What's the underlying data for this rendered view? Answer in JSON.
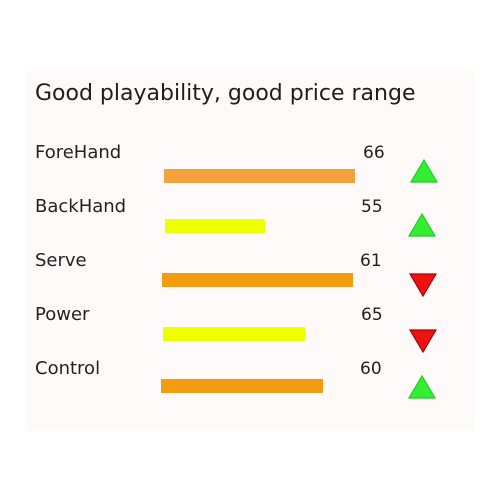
{
  "card": {
    "title": "Good playability, good price range"
  },
  "stats": [
    {
      "label": "ForeHand",
      "value": "66",
      "level": 66,
      "color": "#f4a33c",
      "trend": "up",
      "trend_icon": "triangle-up-icon"
    },
    {
      "label": "BackHand",
      "value": "55",
      "level": 55,
      "color": "#eeff00",
      "trend": "up",
      "trend_icon": "triangle-up-icon"
    },
    {
      "label": "Serve",
      "value": "61",
      "level": 61,
      "color": "#f39c12",
      "trend": "down",
      "trend_icon": "triangle-down-icon"
    },
    {
      "label": "Power",
      "value": "65",
      "level": 65,
      "color": "#eeff00",
      "trend": "down",
      "trend_icon": "triangle-down-icon"
    },
    {
      "label": "Control",
      "value": "60",
      "level": 60,
      "color": "#f39c12",
      "trend": "up",
      "trend_icon": "triangle-up-icon"
    }
  ],
  "colors": {
    "up": "#33ee33",
    "down": "#ee1111"
  }
}
